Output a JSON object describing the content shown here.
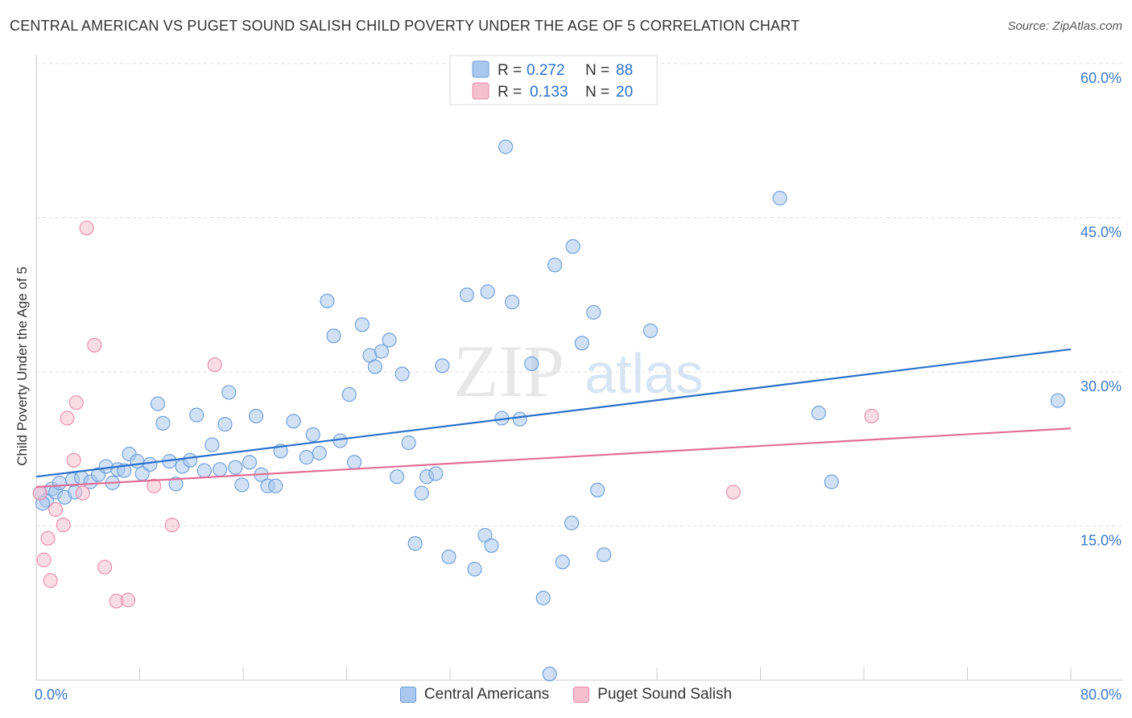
{
  "title": "CENTRAL AMERICAN VS PUGET SOUND SALISH CHILD POVERTY UNDER THE AGE OF 5 CORRELATION CHART",
  "source": "Source: ZipAtlas.com",
  "watermark": {
    "zip": "ZIP",
    "atlas": "atlas"
  },
  "colors": {
    "blue_fill": "#a9c8ef",
    "blue_stroke": "#6c9bd8",
    "blue_line": "#2a6fcb",
    "pink_fill": "#f6bfd0",
    "pink_stroke": "#e88aa8",
    "pink_line": "#e26e97",
    "axis_text": "#3b78c9"
  },
  "legend": {
    "r_label": "R =",
    "n_label": "N =",
    "rows": [
      {
        "r": "0.272",
        "n": "88"
      },
      {
        "r": "0.133",
        "n": "20"
      }
    ]
  },
  "chart_data": {
    "type": "scatter",
    "title": "CENTRAL AMERICAN VS PUGET SOUND SALISH CHILD POVERTY UNDER THE AGE OF 5 CORRELATION CHART",
    "xlabel": "",
    "ylabel": "Child Poverty Under the Age of 5",
    "xlim": [
      0,
      80
    ],
    "ylim": [
      0,
      60
    ],
    "x_tick_labels": [
      "0.0%",
      "80.0%"
    ],
    "y_ticks": [
      15,
      30,
      45,
      60
    ],
    "y_tick_labels": [
      "15.0%",
      "30.0%",
      "45.0%",
      "60.0%"
    ],
    "grid": true,
    "series": [
      {
        "name": "Central Americans",
        "color": "blue",
        "trend": [
          [
            0,
            19.8
          ],
          [
            80,
            32.2
          ]
        ],
        "points": [
          [
            0.3,
            18.2
          ],
          [
            0.8,
            17.5
          ],
          [
            1.2,
            18.6
          ],
          [
            1.5,
            18.3
          ],
          [
            1.8,
            19.2
          ],
          [
            2.2,
            17.8
          ],
          [
            2.8,
            19.5
          ],
          [
            3.5,
            19.7
          ],
          [
            4.2,
            19.3
          ],
          [
            4.8,
            20.0
          ],
          [
            5.4,
            20.8
          ],
          [
            5.9,
            19.2
          ],
          [
            6.3,
            20.5
          ],
          [
            6.8,
            20.4
          ],
          [
            7.2,
            22.0
          ],
          [
            7.8,
            21.3
          ],
          [
            8.2,
            20.1
          ],
          [
            8.8,
            21.0
          ],
          [
            9.4,
            26.9
          ],
          [
            9.8,
            25.0
          ],
          [
            10.3,
            21.3
          ],
          [
            10.8,
            19.1
          ],
          [
            11.3,
            20.8
          ],
          [
            11.9,
            21.4
          ],
          [
            12.4,
            25.8
          ],
          [
            13.0,
            20.4
          ],
          [
            13.6,
            22.9
          ],
          [
            14.2,
            20.5
          ],
          [
            14.6,
            24.9
          ],
          [
            14.9,
            28.0
          ],
          [
            15.4,
            20.7
          ],
          [
            15.9,
            19.0
          ],
          [
            16.5,
            21.2
          ],
          [
            17.0,
            25.7
          ],
          [
            17.4,
            20.0
          ],
          [
            17.9,
            18.9
          ],
          [
            18.5,
            18.9
          ],
          [
            18.9,
            22.3
          ],
          [
            19.9,
            25.2
          ],
          [
            20.9,
            21.7
          ],
          [
            21.4,
            23.9
          ],
          [
            21.9,
            22.1
          ],
          [
            22.5,
            36.9
          ],
          [
            23.0,
            33.5
          ],
          [
            23.5,
            23.3
          ],
          [
            24.2,
            27.8
          ],
          [
            24.6,
            21.2
          ],
          [
            25.2,
            34.6
          ],
          [
            25.8,
            31.6
          ],
          [
            26.2,
            30.5
          ],
          [
            26.7,
            32.0
          ],
          [
            27.3,
            33.1
          ],
          [
            27.9,
            19.8
          ],
          [
            28.3,
            29.8
          ],
          [
            28.8,
            23.1
          ],
          [
            29.3,
            13.3
          ],
          [
            29.8,
            18.2
          ],
          [
            30.2,
            19.8
          ],
          [
            30.9,
            20.1
          ],
          [
            31.4,
            30.6
          ],
          [
            31.9,
            12.0
          ],
          [
            33.3,
            37.5
          ],
          [
            33.9,
            10.8
          ],
          [
            34.9,
            37.8
          ],
          [
            34.7,
            14.1
          ],
          [
            35.2,
            13.1
          ],
          [
            36.0,
            25.5
          ],
          [
            36.3,
            51.9
          ],
          [
            36.8,
            36.8
          ],
          [
            37.4,
            25.4
          ],
          [
            38.3,
            30.8
          ],
          [
            39.2,
            8.0
          ],
          [
            39.7,
            0.6
          ],
          [
            40.1,
            40.4
          ],
          [
            40.7,
            11.5
          ],
          [
            41.4,
            15.3
          ],
          [
            41.5,
            42.2
          ],
          [
            42.2,
            32.8
          ],
          [
            43.1,
            35.8
          ],
          [
            43.4,
            18.5
          ],
          [
            43.9,
            12.2
          ],
          [
            47.5,
            34.0
          ],
          [
            57.5,
            46.9
          ],
          [
            60.5,
            26.0
          ],
          [
            61.5,
            19.3
          ],
          [
            79.0,
            27.2
          ],
          [
            0.5,
            17.2
          ],
          [
            3.0,
            18.3
          ]
        ]
      },
      {
        "name": "Puget Sound Salish",
        "color": "pink",
        "trend": [
          [
            0,
            18.8
          ],
          [
            80,
            24.5
          ]
        ],
        "points": [
          [
            0.3,
            18.2
          ],
          [
            0.6,
            11.7
          ],
          [
            0.9,
            13.8
          ],
          [
            1.1,
            9.7
          ],
          [
            1.5,
            16.6
          ],
          [
            2.1,
            15.1
          ],
          [
            2.4,
            25.5
          ],
          [
            2.9,
            21.4
          ],
          [
            3.1,
            27.0
          ],
          [
            3.6,
            18.2
          ],
          [
            3.9,
            44.0
          ],
          [
            4.5,
            32.6
          ],
          [
            5.3,
            11.0
          ],
          [
            6.2,
            7.7
          ],
          [
            7.1,
            7.8
          ],
          [
            9.1,
            18.9
          ],
          [
            10.5,
            15.1
          ],
          [
            13.8,
            30.7
          ],
          [
            53.9,
            18.3
          ],
          [
            64.6,
            25.7
          ]
        ]
      }
    ]
  }
}
